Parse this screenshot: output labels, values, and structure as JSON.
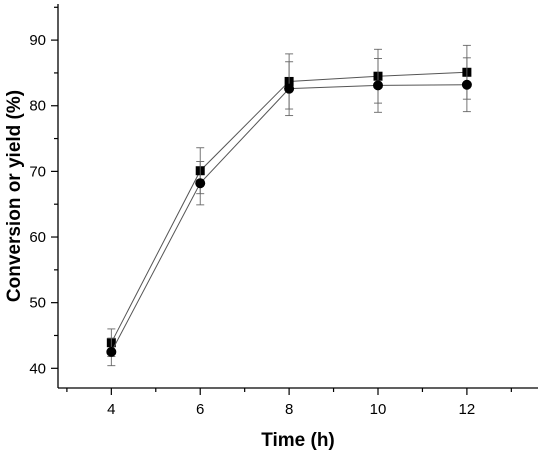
{
  "chart_data": {
    "type": "line",
    "title": "",
    "xlabel": "Time (h)",
    "ylabel": "Conversion or yield (%)",
    "x": [
      4,
      6,
      8,
      10,
      12
    ],
    "x_ticks": [
      "4",
      "6",
      "8",
      "10",
      "12"
    ],
    "y_ticks": [
      "40",
      "50",
      "60",
      "70",
      "80",
      "90"
    ],
    "xlim": [
      2.8,
      13.6
    ],
    "ylim": [
      37,
      95.5
    ],
    "grid": false,
    "legend": "none",
    "series": [
      {
        "marker": "square",
        "color": "#000000",
        "values": [
          43.9,
          70.1,
          83.7,
          84.5,
          85.1
        ],
        "error": [
          2.1,
          3.5,
          4.2,
          4.1,
          4.1
        ]
      },
      {
        "marker": "circle",
        "color": "#000000",
        "values": [
          42.5,
          68.2,
          82.6,
          83.1,
          83.2
        ],
        "error": [
          2.1,
          3.3,
          4.1,
          4.1,
          4.1
        ]
      }
    ]
  }
}
